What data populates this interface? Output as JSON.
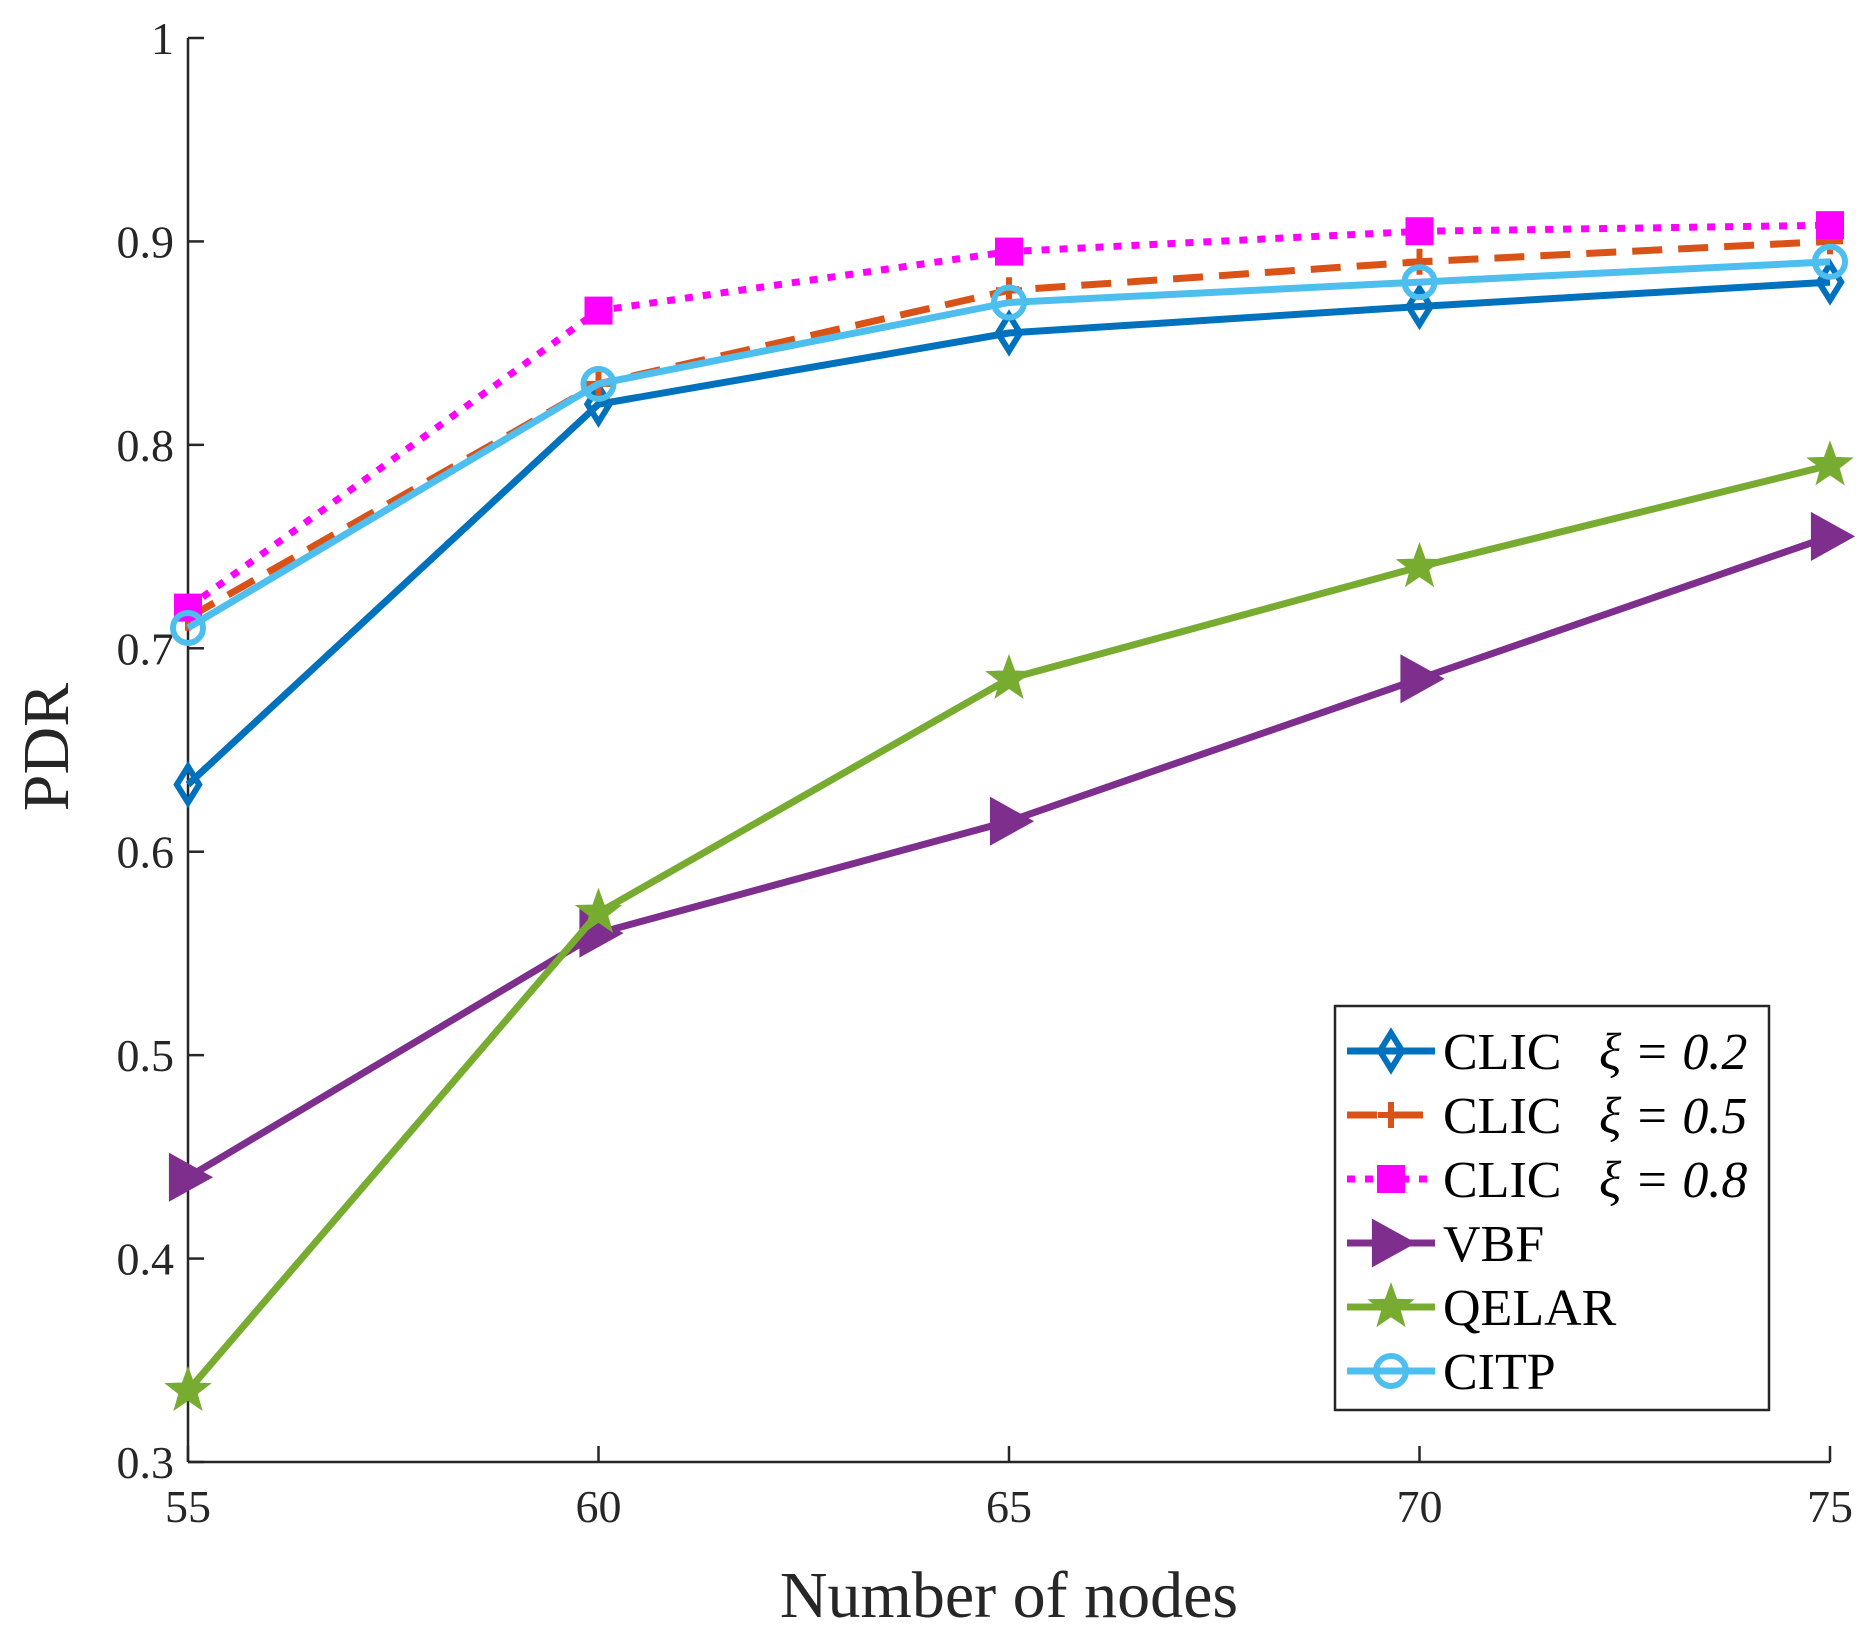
{
  "chart_data": {
    "type": "line",
    "title": "",
    "xlabel": "Number of nodes",
    "ylabel": "PDR",
    "x": [
      55,
      60,
      65,
      70,
      75
    ],
    "xlim": [
      55,
      75
    ],
    "ylim": [
      0.3,
      1
    ],
    "xticks": [
      "55",
      "60",
      "65",
      "70",
      "75"
    ],
    "yticks": [
      "0.3",
      "0.4",
      "0.5",
      "0.6",
      "0.7",
      "0.8",
      "0.9",
      "1"
    ],
    "grid": false,
    "legend_position": "bottom-right",
    "series": [
      {
        "name": "CLIC",
        "param": "ξ = 0.2",
        "values": [
          0.633,
          0.82,
          0.855,
          0.868,
          0.88
        ],
        "color": "#0072BD",
        "dash": "solid",
        "marker": "diamond"
      },
      {
        "name": "CLIC",
        "param": "ξ = 0.5",
        "values": [
          0.715,
          0.83,
          0.876,
          0.89,
          0.9
        ],
        "color": "#D95319",
        "dash": "dashed",
        "marker": "plus"
      },
      {
        "name": "CLIC",
        "param": "ξ = 0.8",
        "values": [
          0.72,
          0.866,
          0.895,
          0.905,
          0.908
        ],
        "color": "#FF00FF",
        "dash": "dotted",
        "marker": "square"
      },
      {
        "name": "VBF",
        "param": "",
        "values": [
          0.44,
          0.56,
          0.615,
          0.685,
          0.755
        ],
        "color": "#7E2F8E",
        "dash": "solid",
        "marker": "triangle-right"
      },
      {
        "name": "QELAR",
        "param": "",
        "values": [
          0.335,
          0.57,
          0.685,
          0.74,
          0.79
        ],
        "color": "#77AC30",
        "dash": "solid",
        "marker": "star"
      },
      {
        "name": "CITP",
        "param": "",
        "values": [
          0.71,
          0.83,
          0.87,
          0.88,
          0.89
        ],
        "color": "#4DBEEE",
        "dash": "solid",
        "marker": "circle"
      }
    ]
  }
}
